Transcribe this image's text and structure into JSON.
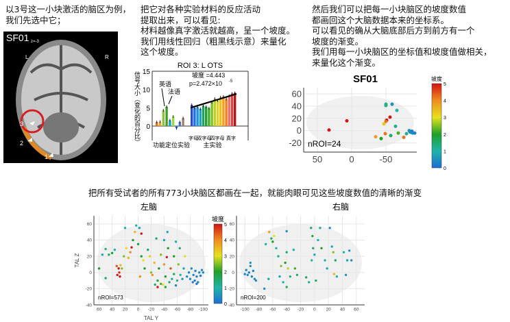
{
  "panel1": {
    "lines": [
      "以3号这一小块激活的脑区为例，",
      "我们先选中它；"
    ]
  },
  "brain_image": {
    "label": "SF01",
    "slice": "z=-3",
    "left": "L",
    "right": "R",
    "markers": [
      "3",
      "2",
      "1"
    ]
  },
  "panel2": {
    "lines": [
      "把它对各种实验材料的反应活动",
      "提取出来，可以看见:",
      "材料越像真字激活就越高，呈一个坡度。",
      "我们用线性回归（粗黑线示意）来量化",
      "这个坡度。"
    ]
  },
  "panel3": {
    "lines": [
      "然后我们可以把每一小块脑区的坡度数值",
      "都画回这个大脑数据本来的坐标系。",
      "可以看见的确从大脑底部后方到前方有一个",
      "坡度的渐变。",
      "我们用每一小块脑区的坐标值和坡度值做相关，",
      "来量化这个渐变。"
    ]
  },
  "bottom_heading": "把所有受试者的所有773小块脑区都画在一起，就能肉眼可见这些坡度数值的清晰的渐变",
  "colors": {
    "red_circle": "#d42020",
    "axis": "#333333"
  },
  "chart_data": [
    {
      "type": "bar",
      "title": "ROI 3: L OTS",
      "ylabel": "信号大小（变化的百分比）",
      "ylim": [
        -3,
        15
      ],
      "yticks": [
        "0",
        "5",
        "10",
        "15"
      ],
      "annotations": {
        "slope": "坡度 =4.443",
        "p": "p=2.472×10",
        "p_exp": "-5",
        "english": "英语",
        "french": "法语"
      },
      "groups": [
        {
          "name": "功能定位实验",
          "values": [
            1.1,
            1.2,
            4.3,
            5.3,
            1.6,
            2.6,
            -0.6,
            1.1,
            2.2
          ],
          "colors": [
            "#e87020",
            "#f0a030",
            "#90c040",
            "#40a020",
            "#20a0c0",
            "#90e040",
            "#2080e0",
            "#5070c0",
            "#a08070"
          ]
        },
        {
          "name": "主实验",
          "values": [
            5.8,
            5.0,
            5.2,
            4.7,
            5.6,
            5.3,
            4.9,
            6.5,
            7.5,
            7.0,
            7.9,
            8.1,
            7.4,
            8.3,
            8.9,
            9.1
          ],
          "colors": [
            "#2050d0",
            "#2070e0",
            "#2090e0",
            "#20a0c0",
            "#20a060",
            "#20a030",
            "#40b030",
            "#80c020",
            "#c0d020",
            "#e0d020",
            "#f0c020",
            "#f0a020",
            "#f08020",
            "#f07070",
            "#e04040",
            "#c01010"
          ]
        }
      ],
      "xlabels_main": [
        "字母",
        "双字母",
        "四字母",
        "真字"
      ],
      "regression": [
        5.0,
        8.8
      ]
    },
    {
      "type": "scatter",
      "title": "SF01",
      "annotation": "nROI=24",
      "xticks": [
        50,
        0,
        -50
      ],
      "yticks": [
        60,
        40,
        20,
        0,
        -20
      ],
      "xlim": [
        70,
        -95
      ],
      "ylim": [
        -35,
        70
      ],
      "colorbar": {
        "label": "坡度",
        "ticks": [
          "0",
          "1",
          "2",
          "3",
          "4",
          "5"
        ],
        "range": [
          0,
          5
        ]
      },
      "points": [
        [
          33,
          1,
          5
        ],
        [
          7,
          16,
          5
        ],
        [
          -50,
          43,
          1.2
        ],
        [
          -50,
          41,
          1.2
        ],
        [
          -59,
          43,
          0.5
        ],
        [
          -66,
          33,
          1
        ],
        [
          -56,
          22,
          5
        ],
        [
          -51,
          17,
          5
        ],
        [
          -50,
          15,
          4.2
        ],
        [
          -47,
          11,
          3.3
        ],
        [
          -64,
          7,
          1.2
        ],
        [
          -35,
          -10,
          3.8
        ],
        [
          -43,
          -13,
          2
        ],
        [
          -49,
          -5,
          4.2
        ],
        [
          -57,
          -8,
          1.5
        ],
        [
          -68,
          -4,
          2.2
        ],
        [
          -76,
          -11,
          4.2
        ],
        [
          -80,
          -5,
          1.2
        ],
        [
          -84,
          0,
          0.5
        ],
        [
          -85,
          -2,
          0.4
        ],
        [
          -87,
          -3,
          0.4
        ],
        [
          -89,
          -4,
          0.5
        ],
        [
          -88,
          -1,
          0.3
        ],
        [
          -92,
          -4,
          0.3
        ]
      ]
    },
    {
      "type": "scatter",
      "title": "左脑",
      "xlabel": "TAL Y",
      "ylabel": "TAL Z",
      "annotation": "nROI=573",
      "xticks": [
        60,
        40,
        20,
        0,
        -20,
        -40,
        -60,
        -80,
        -100
      ],
      "yticks": [
        60,
        40,
        20,
        0,
        -20,
        -40
      ],
      "xlim": [
        68,
        -108
      ],
      "ylim": [
        -40,
        70
      ],
      "colorbar": {
        "label": "坡度",
        "ticks": [
          "0",
          "1",
          "2",
          "3",
          "4",
          "5"
        ],
        "range": [
          0,
          5
        ]
      },
      "points": [
        [
          60,
          5,
          2
        ],
        [
          55,
          22,
          0.8
        ],
        [
          50,
          29,
          1.2
        ],
        [
          50,
          -7,
          1.5
        ],
        [
          45,
          22,
          1.5
        ],
        [
          40,
          24,
          2
        ],
        [
          36,
          28,
          1
        ],
        [
          33,
          8,
          4.5
        ],
        [
          30,
          5,
          5
        ],
        [
          28,
          -5,
          5
        ],
        [
          32,
          -3,
          5
        ],
        [
          27,
          9,
          3.5
        ],
        [
          29,
          0,
          4.8
        ],
        [
          25,
          5,
          2.5
        ],
        [
          22,
          20,
          2.5
        ],
        [
          20,
          55,
          1
        ],
        [
          18,
          30,
          3
        ],
        [
          15,
          18,
          3.5
        ],
        [
          12,
          25,
          4
        ],
        [
          10,
          31,
          5
        ],
        [
          8,
          40,
          2
        ],
        [
          5,
          50,
          3.5
        ],
        [
          3,
          58,
          1
        ],
        [
          0,
          35,
          2
        ],
        [
          -2,
          55,
          0.8
        ],
        [
          -5,
          48,
          5
        ],
        [
          -5,
          20,
          2
        ],
        [
          -3,
          -5,
          4
        ],
        [
          -8,
          15,
          3
        ],
        [
          -10,
          5,
          2
        ],
        [
          -15,
          28,
          1.5
        ],
        [
          -18,
          20,
          3.2
        ],
        [
          -20,
          0,
          2.5
        ],
        [
          -22,
          -3,
          4
        ],
        [
          -25,
          12,
          3.5
        ],
        [
          -28,
          42,
          1.5
        ],
        [
          -30,
          -10,
          2
        ],
        [
          -30,
          -18,
          5
        ],
        [
          -32,
          5,
          2
        ],
        [
          -35,
          22,
          2.5
        ],
        [
          -38,
          -15,
          3
        ],
        [
          -40,
          10,
          4
        ],
        [
          -40,
          40,
          0.8
        ],
        [
          -42,
          -5,
          2
        ],
        [
          -44,
          19,
          5
        ],
        [
          -45,
          50,
          0.8
        ],
        [
          -46,
          30,
          2
        ],
        [
          -48,
          -12,
          1.5
        ],
        [
          -50,
          5,
          4.5
        ],
        [
          -52,
          -8,
          0.8
        ],
        [
          -55,
          20,
          2
        ],
        [
          -55,
          -2,
          1.5
        ],
        [
          -58,
          38,
          1
        ],
        [
          -60,
          -10,
          1.2
        ],
        [
          -62,
          10,
          2.5
        ],
        [
          -64,
          30,
          1.5
        ],
        [
          -65,
          -3,
          1
        ],
        [
          -68,
          -8,
          0.5
        ],
        [
          -70,
          5,
          0.8
        ],
        [
          -72,
          20,
          3
        ],
        [
          -75,
          -5,
          0.5
        ],
        [
          -78,
          0,
          0.4
        ],
        [
          -80,
          -8,
          0.3
        ],
        [
          -82,
          5,
          0.4
        ],
        [
          -85,
          -3,
          0.3
        ],
        [
          -87,
          -10,
          0.2
        ],
        [
          -88,
          2,
          0.4
        ],
        [
          -90,
          -5,
          0.3
        ],
        [
          -92,
          -12,
          0.3
        ],
        [
          -94,
          0,
          0.4
        ],
        [
          -96,
          -4,
          0.2
        ],
        [
          -98,
          3,
          0.3
        ],
        [
          -100,
          0,
          0.4
        ],
        [
          -90,
          -14,
          0.2
        ],
        [
          -84,
          -12,
          0.3
        ],
        [
          -58,
          -16,
          0.4
        ],
        [
          -42,
          -18,
          1.8
        ],
        [
          -35,
          -14,
          2.2
        ],
        [
          -26,
          -15,
          1.5
        ]
      ]
    },
    {
      "type": "scatter",
      "title": "右脑",
      "annotation": "nROI=200",
      "xticks": [
        -100,
        -80,
        -60,
        -40,
        -20,
        0,
        20,
        40,
        60
      ],
      "yticks": [
        60,
        40,
        20,
        0,
        -20,
        -40
      ],
      "xlim": [
        -112,
        72
      ],
      "ylim": [
        -40,
        70
      ],
      "points": [
        [
          -98,
          3,
          0.3
        ],
        [
          -96,
          -3,
          0.4
        ],
        [
          -94,
          0,
          0.3
        ],
        [
          -92,
          8,
          0.4
        ],
        [
          -90,
          -5,
          0.3
        ],
        [
          -88,
          2,
          0.4
        ],
        [
          -86,
          -8,
          0.3
        ],
        [
          -92,
          12,
          0.5
        ],
        [
          -84,
          -10,
          0.4
        ],
        [
          -100,
          -2,
          0.3
        ],
        [
          -65,
          50,
          3.8
        ],
        [
          -62,
          42,
          1.5
        ],
        [
          -60,
          38,
          2
        ],
        [
          -58,
          45,
          3
        ],
        [
          -55,
          30,
          1
        ],
        [
          -52,
          20,
          1.2
        ],
        [
          -50,
          -5,
          0.8
        ],
        [
          -48,
          8,
          2.5
        ],
        [
          -45,
          -12,
          1
        ],
        [
          -42,
          12,
          2
        ],
        [
          -40,
          25,
          1.5
        ],
        [
          -40,
          -18,
          1.5
        ],
        [
          -38,
          5,
          2.8
        ],
        [
          -35,
          -5,
          1.2
        ],
        [
          -30,
          28,
          1
        ],
        [
          -28,
          5,
          2.2
        ],
        [
          -25,
          -3,
          1.5
        ],
        [
          -70,
          35,
          1
        ],
        [
          -72,
          -20,
          0.5
        ],
        [
          -66,
          -8,
          0.8
        ],
        [
          -5,
          55,
          1.5
        ],
        [
          -3,
          45,
          1.8
        ],
        [
          -2,
          30,
          1.5
        ],
        [
          -4,
          15,
          1
        ],
        [
          0,
          22,
          0.8
        ],
        [
          2,
          -10,
          1.5
        ],
        [
          5,
          40,
          1
        ],
        [
          8,
          55,
          1.2
        ],
        [
          10,
          30,
          2
        ],
        [
          15,
          15,
          1
        ],
        [
          18,
          5,
          0.8
        ],
        [
          22,
          55,
          0.5
        ],
        [
          25,
          32,
          0.8
        ],
        [
          27,
          25,
          2.5
        ],
        [
          28,
          -2,
          3.5
        ],
        [
          30,
          15,
          1.5
        ],
        [
          32,
          -5,
          1
        ],
        [
          42,
          25,
          1
        ],
        [
          45,
          -3,
          0.5
        ],
        [
          47,
          15,
          0.8
        ],
        [
          50,
          27,
          0.5
        ],
        [
          53,
          15,
          0.5
        ],
        [
          -40,
          51,
          0.5
        ],
        [
          -12,
          -6,
          1.5
        ],
        [
          -8,
          -12,
          1.2
        ]
      ]
    }
  ]
}
